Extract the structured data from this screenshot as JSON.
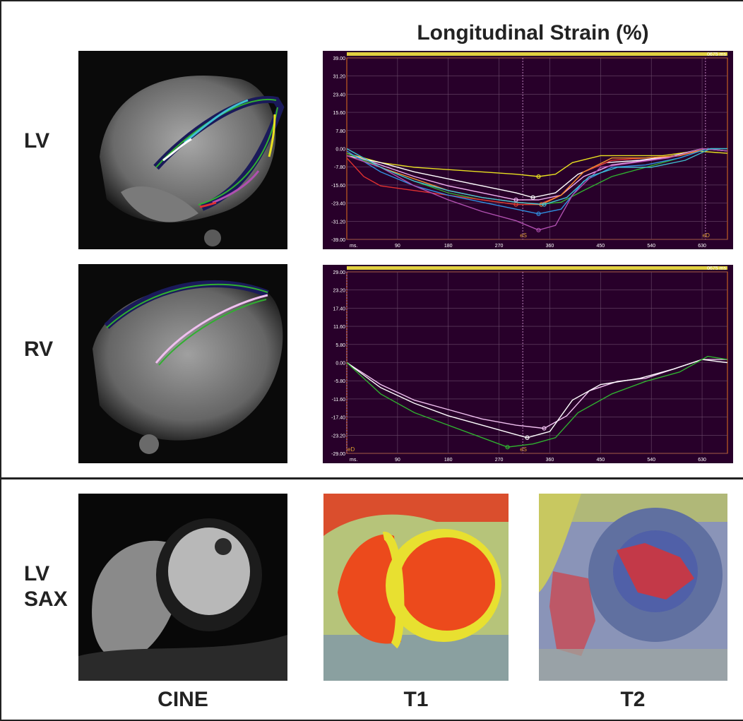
{
  "figure": {
    "title": "Longitudinal Strain (%)",
    "rows": {
      "lv": "LV",
      "rv": "RV",
      "sax_line1": "LV",
      "sax_line2": "SAX"
    },
    "columns": {
      "cine": "CINE",
      "t1": "T1",
      "t2": "T2"
    }
  },
  "chart_data": [
    {
      "type": "line",
      "title": "Longitudinal Strain (%)",
      "xlabel": "ms.",
      "ylabel": "",
      "x_ticks": [
        90,
        180,
        270,
        360,
        450,
        540,
        630
      ],
      "y_ticks": [
        39.0,
        31.2,
        23.4,
        15.6,
        7.8,
        0.0,
        -7.8,
        -15.6,
        -23.4,
        -31.2,
        -39.0
      ],
      "xlim": [
        0,
        675
      ],
      "ylim": [
        -39,
        39
      ],
      "time_label": "0675 ms",
      "markers": [
        {
          "label": "eS",
          "x": 312
        },
        {
          "label": "eD",
          "x": 636
        }
      ],
      "series": [
        {
          "color": "#e8e020",
          "x": [
            0,
            60,
            120,
            180,
            240,
            300,
            340,
            370,
            400,
            450,
            500,
            560,
            620,
            675
          ],
          "y": [
            -2,
            -6,
            -8,
            -9,
            -10,
            -11,
            -12,
            -11,
            -6,
            -3,
            -3,
            -3,
            -1,
            -2
          ]
        },
        {
          "color": "#ffffff",
          "x": [
            0,
            60,
            120,
            180,
            240,
            300,
            330,
            370,
            410,
            460,
            520,
            580,
            630,
            675
          ],
          "y": [
            -3,
            -6,
            -10,
            -13,
            -16,
            -19,
            -21,
            -19,
            -11,
            -6,
            -5,
            -3,
            0,
            -1
          ]
        },
        {
          "color": "#f0b0f0",
          "x": [
            0,
            60,
            120,
            180,
            240,
            300,
            340,
            380,
            420,
            470,
            530,
            590,
            640,
            675
          ],
          "y": [
            -2,
            -7,
            -12,
            -16,
            -19,
            -22,
            -22,
            -20,
            -12,
            -7,
            -5,
            -3,
            0,
            -1
          ]
        },
        {
          "color": "#30b030",
          "x": [
            0,
            60,
            120,
            180,
            240,
            300,
            340,
            380,
            420,
            470,
            530,
            590,
            640,
            675
          ],
          "y": [
            -2,
            -8,
            -14,
            -19,
            -22,
            -24,
            -24,
            -23,
            -18,
            -12,
            -8,
            -4,
            0,
            -1
          ]
        },
        {
          "color": "#e03030",
          "x": [
            0,
            30,
            60,
            120,
            180,
            240,
            300,
            340,
            380,
            420,
            470,
            530,
            590,
            640,
            675
          ],
          "y": [
            -4,
            -12,
            -16,
            -18,
            -20,
            -22,
            -24,
            -24,
            -20,
            -10,
            -5,
            -4,
            -3,
            0,
            -1
          ]
        },
        {
          "color": "#f09030",
          "x": [
            0,
            60,
            120,
            180,
            240,
            300,
            345,
            380,
            420,
            470,
            530,
            590,
            640,
            675
          ],
          "y": [
            -3,
            -8,
            -13,
            -18,
            -21,
            -23,
            -24,
            -20,
            -10,
            -4,
            -4,
            -3,
            0,
            -1
          ]
        },
        {
          "color": "#3090e0",
          "x": [
            0,
            60,
            120,
            180,
            240,
            300,
            340,
            380,
            420,
            470,
            530,
            590,
            640,
            675
          ],
          "y": [
            -1,
            -10,
            -16,
            -20,
            -23,
            -26,
            -28,
            -26,
            -14,
            -8,
            -7,
            -4,
            0,
            -1
          ]
        },
        {
          "color": "#b050b0",
          "x": [
            0,
            60,
            120,
            180,
            240,
            300,
            340,
            370,
            400,
            450,
            510,
            570,
            630,
            675
          ],
          "y": [
            -3,
            -8,
            -16,
            -22,
            -27,
            -31,
            -35,
            -33,
            -20,
            -8,
            -6,
            -4,
            0,
            -1
          ]
        },
        {
          "color": "#40c0d0",
          "x": [
            0,
            60,
            120,
            180,
            240,
            300,
            350,
            390,
            430,
            480,
            540,
            600,
            645,
            675
          ],
          "y": [
            0,
            -8,
            -14,
            -18,
            -21,
            -23,
            -24,
            -21,
            -12,
            -8,
            -8,
            -5,
            0,
            0
          ]
        }
      ]
    },
    {
      "type": "line",
      "title": "",
      "xlabel": "ms.",
      "ylabel": "",
      "x_ticks": [
        90,
        180,
        270,
        360,
        450,
        540,
        630
      ],
      "y_ticks": [
        29.0,
        23.2,
        17.4,
        11.6,
        5.8,
        0.0,
        -5.8,
        -11.6,
        -17.4,
        -23.2,
        -29.0
      ],
      "xlim": [
        0,
        675
      ],
      "ylim": [
        -29,
        29
      ],
      "time_label": "0675 ms",
      "markers": [
        {
          "label": "eS",
          "x": 312
        },
        {
          "label": "eD",
          "x": 0
        }
      ],
      "series": [
        {
          "color": "#f0c0f0",
          "x": [
            0,
            60,
            120,
            180,
            240,
            300,
            350,
            390,
            430,
            480,
            530,
            580,
            630,
            675
          ],
          "y": [
            0,
            -7,
            -12,
            -15,
            -18,
            -20,
            -21,
            -17,
            -9,
            -6,
            -5,
            -2,
            1,
            1
          ]
        },
        {
          "color": "#ffffff",
          "x": [
            0,
            60,
            120,
            180,
            240,
            300,
            320,
            360,
            400,
            450,
            520,
            580,
            630,
            675
          ],
          "y": [
            0,
            -8,
            -13,
            -17,
            -20,
            -23,
            -24,
            -22,
            -12,
            -7,
            -5,
            -2,
            1,
            0
          ]
        },
        {
          "color": "#30b030",
          "x": [
            0,
            60,
            120,
            180,
            240,
            285,
            330,
            370,
            410,
            470,
            530,
            590,
            640,
            675
          ],
          "y": [
            0,
            -10,
            -16,
            -20,
            -24,
            -27,
            -26,
            -24,
            -16,
            -10,
            -6,
            -3,
            2,
            1
          ]
        }
      ]
    }
  ]
}
